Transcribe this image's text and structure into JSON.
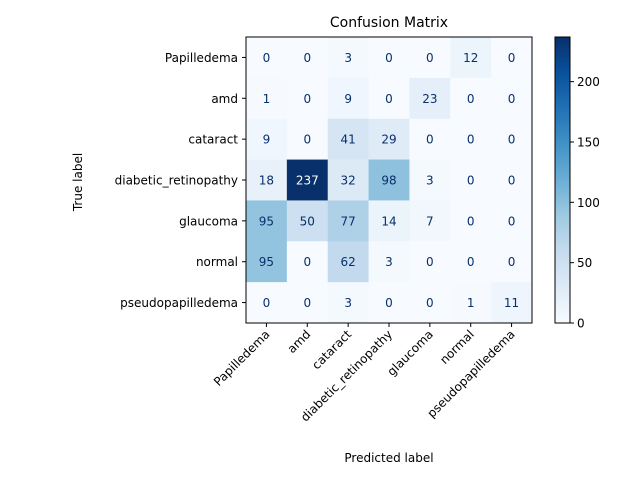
{
  "chart_data": {
    "type": "heatmap",
    "title": "Confusion Matrix",
    "xlabel": "Predicted label",
    "ylabel": "True label",
    "row_labels": [
      "Papilledema",
      "amd",
      "cataract",
      "diabetic_retinopathy",
      "glaucoma",
      "normal",
      "pseudopapilledema"
    ],
    "col_labels": [
      "Papilledema",
      "amd",
      "cataract",
      "diabetic_retinopathy",
      "glaucoma",
      "normal",
      "pseudopapilledema"
    ],
    "values": [
      [
        0,
        0,
        3,
        0,
        0,
        12,
        0
      ],
      [
        1,
        0,
        9,
        0,
        23,
        0,
        0
      ],
      [
        9,
        0,
        41,
        29,
        0,
        0,
        0
      ],
      [
        18,
        237,
        32,
        98,
        3,
        0,
        0
      ],
      [
        95,
        50,
        77,
        14,
        7,
        0,
        0
      ],
      [
        95,
        0,
        62,
        3,
        0,
        0,
        0
      ],
      [
        0,
        0,
        3,
        0,
        0,
        1,
        11
      ]
    ],
    "colormap": "Blues",
    "vmin": 0,
    "vmax": 237,
    "colorbar_ticks": [
      "0",
      "50",
      "100",
      "150",
      "200"
    ]
  }
}
